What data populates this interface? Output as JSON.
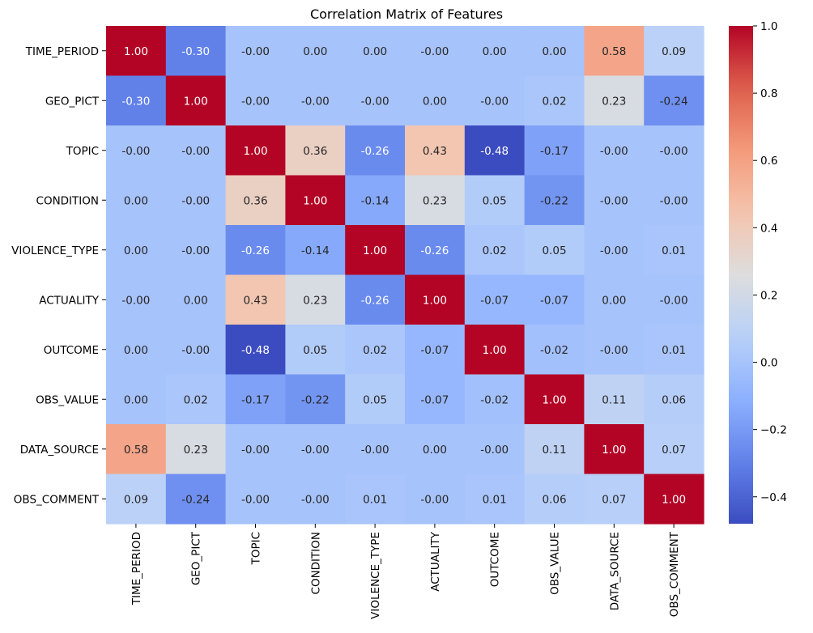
{
  "chart_data": {
    "type": "heatmap",
    "title": "Correlation Matrix of Features",
    "xlabel": "",
    "ylabel": "",
    "rows": [
      "TIME_PERIOD",
      "GEO_PICT",
      "TOPIC",
      "CONDITION",
      "VIOLENCE_TYPE",
      "ACTUALITY",
      "OUTCOME",
      "OBS_VALUE",
      "DATA_SOURCE",
      "OBS_COMMENT"
    ],
    "columns": [
      "TIME_PERIOD",
      "GEO_PICT",
      "TOPIC",
      "CONDITION",
      "VIOLENCE_TYPE",
      "ACTUALITY",
      "OUTCOME",
      "OBS_VALUE",
      "DATA_SOURCE",
      "OBS_COMMENT"
    ],
    "values": [
      [
        1.0,
        -0.3,
        -0.0,
        0.0,
        0.0,
        -0.0,
        0.0,
        0.0,
        0.58,
        0.09
      ],
      [
        -0.3,
        1.0,
        -0.0,
        -0.0,
        -0.0,
        0.0,
        -0.0,
        0.02,
        0.23,
        -0.24
      ],
      [
        -0.0,
        -0.0,
        1.0,
        0.36,
        -0.26,
        0.43,
        -0.48,
        -0.17,
        -0.0,
        -0.0
      ],
      [
        0.0,
        -0.0,
        0.36,
        1.0,
        -0.14,
        0.23,
        0.05,
        -0.22,
        -0.0,
        -0.0
      ],
      [
        0.0,
        -0.0,
        -0.26,
        -0.14,
        1.0,
        -0.26,
        0.02,
        0.05,
        -0.0,
        0.01
      ],
      [
        -0.0,
        0.0,
        0.43,
        0.23,
        -0.26,
        1.0,
        -0.07,
        -0.07,
        0.0,
        -0.0
      ],
      [
        0.0,
        -0.0,
        -0.48,
        0.05,
        0.02,
        -0.07,
        1.0,
        -0.02,
        -0.0,
        0.01
      ],
      [
        0.0,
        0.02,
        -0.17,
        -0.22,
        0.05,
        -0.07,
        -0.02,
        1.0,
        0.11,
        0.06
      ],
      [
        0.58,
        0.23,
        -0.0,
        -0.0,
        -0.0,
        0.0,
        -0.0,
        0.11,
        1.0,
        0.07
      ],
      [
        0.09,
        -0.24,
        -0.0,
        -0.0,
        0.01,
        -0.0,
        0.01,
        0.06,
        0.07,
        1.0
      ]
    ],
    "labels": [
      [
        "1.00",
        "-0.30",
        "-0.00",
        "0.00",
        "0.00",
        "-0.00",
        "0.00",
        "0.00",
        "0.58",
        "0.09"
      ],
      [
        "-0.30",
        "1.00",
        "-0.00",
        "-0.00",
        "-0.00",
        "0.00",
        "-0.00",
        "0.02",
        "0.23",
        "-0.24"
      ],
      [
        "-0.00",
        "-0.00",
        "1.00",
        "0.36",
        "-0.26",
        "0.43",
        "-0.48",
        "-0.17",
        "-0.00",
        "-0.00"
      ],
      [
        "0.00",
        "-0.00",
        "0.36",
        "1.00",
        "-0.14",
        "0.23",
        "0.05",
        "-0.22",
        "-0.00",
        "-0.00"
      ],
      [
        "0.00",
        "-0.00",
        "-0.26",
        "-0.14",
        "1.00",
        "-0.26",
        "0.02",
        "0.05",
        "-0.00",
        "0.01"
      ],
      [
        "-0.00",
        "0.00",
        "0.43",
        "0.23",
        "-0.26",
        "1.00",
        "-0.07",
        "-0.07",
        "0.00",
        "-0.00"
      ],
      [
        "0.00",
        "-0.00",
        "-0.48",
        "0.05",
        "0.02",
        "-0.07",
        "1.00",
        "-0.02",
        "-0.00",
        "0.01"
      ],
      [
        "0.00",
        "0.02",
        "-0.17",
        "-0.22",
        "0.05",
        "-0.07",
        "-0.02",
        "1.00",
        "0.11",
        "0.06"
      ],
      [
        "0.58",
        "0.23",
        "-0.00",
        "-0.00",
        "-0.00",
        "0.00",
        "-0.00",
        "0.11",
        "1.00",
        "0.07"
      ],
      [
        "0.09",
        "-0.24",
        "-0.00",
        "-0.00",
        "0.01",
        "-0.00",
        "0.01",
        "0.06",
        "0.07",
        "1.00"
      ]
    ],
    "colormap": "coolwarm",
    "color_range": [
      -0.48,
      1.0
    ],
    "colorbar_ticks": [
      1.0,
      0.8,
      0.6,
      0.4,
      0.2,
      0.0,
      -0.2,
      -0.4
    ],
    "colorbar_tick_labels": [
      "1.0",
      "0.8",
      "0.6",
      "0.4",
      "0.2",
      "0.0",
      "−0.2",
      "−0.4"
    ],
    "colors": {
      "low": "#3b4cc0",
      "mid": "#dddddd",
      "high": "#b40426"
    }
  }
}
